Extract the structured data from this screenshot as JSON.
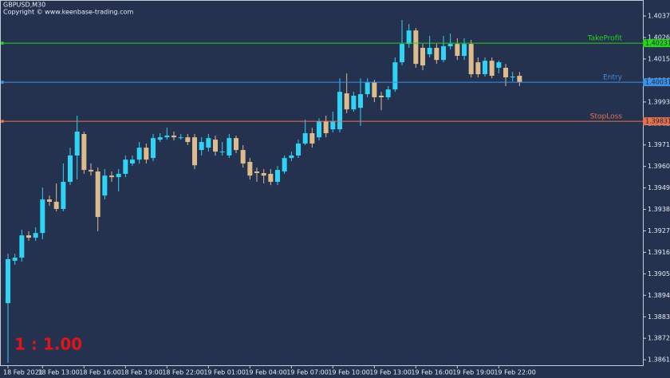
{
  "chart_data": {
    "type": "candlestick",
    "title": "GBPUSD,M30",
    "subtitle": "Copyright © www.keenbase-trading.com",
    "annotation": "1 : 1.00",
    "bull_color": "#2ed3f5",
    "bear_color": "#dcbc8c",
    "ylim": [
      1.38582,
      1.40452
    ],
    "yticks": [
      {
        "value": 1.3861,
        "label": "1.38610"
      },
      {
        "value": 1.3872,
        "label": "1.38720"
      },
      {
        "value": 1.3883,
        "label": "1.38830"
      },
      {
        "value": 1.3894,
        "label": "1.38940"
      },
      {
        "value": 1.3905,
        "label": "1.39050"
      },
      {
        "value": 1.3916,
        "label": "1.39160"
      },
      {
        "value": 1.3927,
        "label": "1.39270"
      },
      {
        "value": 1.3938,
        "label": "1.39380"
      },
      {
        "value": 1.3949,
        "label": "1.39490"
      },
      {
        "value": 1.396,
        "label": "1.39600"
      },
      {
        "value": 1.3971,
        "label": "1.39710"
      },
      {
        "value": 1.3982,
        "label": "1.39820"
      },
      {
        "value": 1.3993,
        "label": "1.39930"
      },
      {
        "value": 1.4004,
        "label": "1.40040"
      },
      {
        "value": 1.4015,
        "label": "1.40150"
      },
      {
        "value": 1.4026,
        "label": "1.40260"
      },
      {
        "value": 1.4037,
        "label": "1.40370"
      }
    ],
    "categories": [
      "18 Feb 2021",
      null,
      null,
      null,
      null,
      "18 Feb 13:00",
      null,
      null,
      null,
      null,
      null,
      "18 Feb 16:00",
      null,
      null,
      null,
      null,
      null,
      "18 Feb 19:00",
      null,
      null,
      null,
      null,
      null,
      "18 Feb 22:00",
      null,
      null,
      null,
      null,
      null,
      "19 Feb 01:00",
      null,
      null,
      null,
      null,
      null,
      "19 Feb 04:00",
      null,
      null,
      null,
      null,
      null,
      "19 Feb 07:00",
      null,
      null,
      null,
      null,
      null,
      "19 Feb 10:00",
      null,
      null,
      null,
      null,
      null,
      "19 Feb 13:00",
      null,
      null,
      null,
      null,
      null,
      "19 Feb 16:00",
      null,
      null,
      null,
      null,
      null,
      "19 Feb 19:00",
      null,
      null,
      null,
      null,
      null,
      "19 Feb 22:00",
      null,
      null,
      null
    ],
    "open": [
      1.389,
      1.39117,
      1.39133,
      1.39247,
      1.39235,
      1.39259,
      1.39431,
      1.39419,
      1.39382,
      1.39521,
      1.39656,
      1.39766,
      1.39582,
      1.39574,
      1.39451,
      1.39553,
      1.39545,
      1.39562,
      1.39615,
      1.39635,
      1.39696,
      1.39643,
      1.39737,
      1.39749,
      1.39758,
      1.39749,
      1.39749,
      1.39749,
      1.39684,
      1.39696,
      1.39737,
      1.39676,
      1.39656,
      1.39745,
      1.39684,
      1.39623,
      1.39574,
      1.39566,
      1.39562,
      1.39521,
      1.39574,
      1.39643,
      1.39656,
      1.39717,
      1.3977,
      1.39749,
      1.39831,
      1.3979,
      1.3979,
      1.39974,
      1.39892,
      1.399,
      1.3997,
      1.40031,
      1.39962,
      1.39954,
      1.39994,
      1.40133,
      1.40227,
      1.40296,
      1.40207,
      1.40174,
      1.40207,
      1.40145,
      1.40215,
      1.40227,
      1.40166,
      1.40227,
      1.40133,
      1.40072,
      1.40141,
      1.40105,
      1.40105,
      1.40056,
      1.40064
    ],
    "high": [
      1.39153,
      1.39153,
      1.39276,
      1.39268,
      1.39288,
      1.39492,
      1.39451,
      1.39513,
      1.39615,
      1.39696,
      1.3986,
      1.39778,
      1.39615,
      1.39594,
      1.39586,
      1.39574,
      1.39586,
      1.39656,
      1.39656,
      1.39725,
      1.39717,
      1.39766,
      1.3977,
      1.39798,
      1.39778,
      1.39766,
      1.39766,
      1.39766,
      1.39749,
      1.39766,
      1.39758,
      1.39725,
      1.39766,
      1.39758,
      1.39709,
      1.39643,
      1.39594,
      1.39586,
      1.39586,
      1.39602,
      1.39656,
      1.39676,
      1.39737,
      1.39839,
      1.39798,
      1.39847,
      1.3986,
      1.3988,
      1.40051,
      1.40076,
      1.39982,
      1.40051,
      1.40051,
      1.40043,
      1.39982,
      1.40011,
      1.40158,
      1.4035,
      1.40329,
      1.40309,
      1.40227,
      1.40268,
      1.40227,
      1.40268,
      1.4028,
      1.40256,
      1.40256,
      1.40248,
      1.40158,
      1.40158,
      1.40158,
      1.40141,
      1.40125,
      1.40084,
      1.40084
    ],
    "low": [
      1.38594,
      1.39096,
      1.39112,
      1.39219,
      1.39219,
      1.39227,
      1.39398,
      1.3937,
      1.3937,
      1.39504,
      1.39533,
      1.39562,
      1.39553,
      1.39268,
      1.39431,
      1.39521,
      1.39472,
      1.39545,
      1.39602,
      1.39615,
      1.39615,
      1.39627,
      1.39725,
      1.39737,
      1.39733,
      1.39737,
      1.39709,
      1.39586,
      1.39656,
      1.39676,
      1.39656,
      1.39656,
      1.39643,
      1.39668,
      1.39594,
      1.39533,
      1.39521,
      1.39513,
      1.39504,
      1.39504,
      1.39562,
      1.39627,
      1.39643,
      1.39709,
      1.39696,
      1.39733,
      1.39749,
      1.39774,
      1.39774,
      1.39872,
      1.3988,
      1.39807,
      1.39954,
      1.39929,
      1.39888,
      1.39941,
      1.39982,
      1.40117,
      1.40207,
      1.40105,
      1.40092,
      1.40158,
      1.40125,
      1.40133,
      1.40199,
      1.40145,
      1.40145,
      1.40056,
      1.40056,
      1.4006,
      1.40051,
      1.40076,
      1.40011,
      1.40035,
      1.40011
    ],
    "close": [
      1.39125,
      1.39133,
      1.39247,
      1.39235,
      1.39259,
      1.39431,
      1.39419,
      1.39382,
      1.39521,
      1.39656,
      1.39778,
      1.39582,
      1.39574,
      1.39341,
      1.39553,
      1.39545,
      1.39562,
      1.39635,
      1.39635,
      1.39696,
      1.39635,
      1.39745,
      1.39749,
      1.39758,
      1.39749,
      1.39749,
      1.39725,
      1.39606,
      1.39725,
      1.39745,
      1.39676,
      1.39676,
      1.39745,
      1.39684,
      1.39615,
      1.39553,
      1.39566,
      1.39553,
      1.39521,
      1.39582,
      1.39643,
      1.39656,
      1.39717,
      1.3977,
      1.39717,
      1.39831,
      1.3977,
      1.39831,
      1.39982,
      1.39892,
      1.39962,
      1.3997,
      1.40031,
      1.39954,
      1.39954,
      1.39994,
      1.40133,
      1.40227,
      1.40296,
      1.40125,
      1.40117,
      1.40207,
      1.40145,
      1.40215,
      1.40227,
      1.40166,
      1.40227,
      1.40072,
      1.40072,
      1.40141,
      1.40064,
      1.40133,
      1.40056,
      1.4006,
      1.40031
    ],
    "levels": [
      {
        "name": "TakeProfit",
        "value": 1.40231,
        "color": "#27d21c"
      },
      {
        "name": "Entry",
        "value": 1.40031,
        "color": "#3d92e6"
      },
      {
        "name": "StopLoss",
        "value": 1.39831,
        "color": "#e8714f"
      }
    ]
  }
}
